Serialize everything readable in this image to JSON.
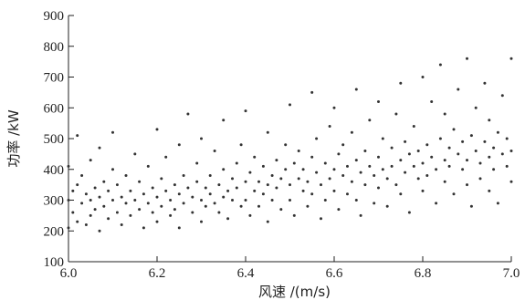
{
  "chart_data": {
    "type": "scatter",
    "title": "",
    "xlabel": "风速 /(m/s)",
    "ylabel": "功率 /kW",
    "xlim": [
      6.0,
      7.0
    ],
    "ylim": [
      100,
      900
    ],
    "grid": false,
    "x_ticks": [
      "6.0",
      "6.2",
      "6.4",
      "6.6",
      "6.8",
      "7.0"
    ],
    "y_ticks": [
      "100",
      "200",
      "300",
      "400",
      "500",
      "600",
      "700",
      "800",
      "900"
    ],
    "colors": {
      "point": "#333333",
      "axis": "#222222"
    },
    "series": [
      {
        "name": "",
        "points": [
          [
            6.0,
            300
          ],
          [
            6.0,
            410
          ],
          [
            6.0,
            210
          ],
          [
            6.01,
            330
          ],
          [
            6.01,
            260
          ],
          [
            6.02,
            350
          ],
          [
            6.02,
            510
          ],
          [
            6.02,
            230
          ],
          [
            6.03,
            290
          ],
          [
            6.03,
            380
          ],
          [
            6.04,
            320
          ],
          [
            6.04,
            220
          ],
          [
            6.05,
            300
          ],
          [
            6.05,
            430
          ],
          [
            6.05,
            250
          ],
          [
            6.06,
            340
          ],
          [
            6.06,
            270
          ],
          [
            6.07,
            310
          ],
          [
            6.07,
            470
          ],
          [
            6.07,
            200
          ],
          [
            6.08,
            360
          ],
          [
            6.08,
            280
          ],
          [
            6.09,
            330
          ],
          [
            6.09,
            240
          ],
          [
            6.1,
            300
          ],
          [
            6.1,
            400
          ],
          [
            6.1,
            520
          ],
          [
            6.11,
            260
          ],
          [
            6.11,
            350
          ],
          [
            6.12,
            310
          ],
          [
            6.12,
            220
          ],
          [
            6.13,
            290
          ],
          [
            6.13,
            380
          ],
          [
            6.14,
            330
          ],
          [
            6.14,
            250
          ],
          [
            6.15,
            300
          ],
          [
            6.15,
            450
          ],
          [
            6.16,
            360
          ],
          [
            6.16,
            270
          ],
          [
            6.17,
            320
          ],
          [
            6.17,
            210
          ],
          [
            6.18,
            290
          ],
          [
            6.18,
            410
          ],
          [
            6.19,
            340
          ],
          [
            6.19,
            260
          ],
          [
            6.2,
            310
          ],
          [
            6.2,
            530
          ],
          [
            6.2,
            230
          ],
          [
            6.21,
            370
          ],
          [
            6.21,
            280
          ],
          [
            6.22,
            330
          ],
          [
            6.22,
            440
          ],
          [
            6.23,
            300
          ],
          [
            6.23,
            250
          ],
          [
            6.24,
            350
          ],
          [
            6.24,
            270
          ],
          [
            6.25,
            320
          ],
          [
            6.25,
            480
          ],
          [
            6.25,
            210
          ],
          [
            6.26,
            380
          ],
          [
            6.26,
            290
          ],
          [
            6.27,
            340
          ],
          [
            6.27,
            580
          ],
          [
            6.28,
            310
          ],
          [
            6.28,
            260
          ],
          [
            6.29,
            360
          ],
          [
            6.29,
            420
          ],
          [
            6.3,
            300
          ],
          [
            6.3,
            230
          ],
          [
            6.3,
            500
          ],
          [
            6.31,
            340
          ],
          [
            6.31,
            280
          ],
          [
            6.32,
            380
          ],
          [
            6.32,
            320
          ],
          [
            6.33,
            290
          ],
          [
            6.33,
            460
          ],
          [
            6.34,
            350
          ],
          [
            6.34,
            260
          ],
          [
            6.35,
            400
          ],
          [
            6.35,
            310
          ],
          [
            6.35,
            560
          ],
          [
            6.36,
            330
          ],
          [
            6.36,
            240
          ],
          [
            6.37,
            370
          ],
          [
            6.37,
            300
          ],
          [
            6.38,
            420
          ],
          [
            6.38,
            340
          ],
          [
            6.39,
            280
          ],
          [
            6.39,
            480
          ],
          [
            6.4,
            360
          ],
          [
            6.4,
            300
          ],
          [
            6.4,
            590
          ],
          [
            6.41,
            390
          ],
          [
            6.41,
            250
          ],
          [
            6.42,
            330
          ],
          [
            6.42,
            440
          ],
          [
            6.43,
            360
          ],
          [
            6.43,
            280
          ],
          [
            6.44,
            410
          ],
          [
            6.44,
            320
          ],
          [
            6.45,
            350
          ],
          [
            6.45,
            520
          ],
          [
            6.45,
            230
          ],
          [
            6.46,
            380
          ],
          [
            6.46,
            300
          ],
          [
            6.47,
            430
          ],
          [
            6.47,
            340
          ],
          [
            6.48,
            370
          ],
          [
            6.48,
            270
          ],
          [
            6.49,
            400
          ],
          [
            6.49,
            480
          ],
          [
            6.5,
            350
          ],
          [
            6.5,
            300
          ],
          [
            6.5,
            610
          ],
          [
            6.51,
            420
          ],
          [
            6.51,
            250
          ],
          [
            6.52,
            370
          ],
          [
            6.52,
            460
          ],
          [
            6.53,
            330
          ],
          [
            6.53,
            400
          ],
          [
            6.54,
            360
          ],
          [
            6.54,
            280
          ],
          [
            6.55,
            440
          ],
          [
            6.55,
            320
          ],
          [
            6.55,
            650
          ],
          [
            6.56,
            390
          ],
          [
            6.56,
            500
          ],
          [
            6.57,
            350
          ],
          [
            6.57,
            240
          ],
          [
            6.58,
            420
          ],
          [
            6.58,
            300
          ],
          [
            6.59,
            370
          ],
          [
            6.59,
            540
          ],
          [
            6.6,
            400
          ],
          [
            6.6,
            330
          ],
          [
            6.6,
            600
          ],
          [
            6.61,
            450
          ],
          [
            6.61,
            270
          ],
          [
            6.62,
            380
          ],
          [
            6.62,
            480
          ],
          [
            6.63,
            410
          ],
          [
            6.63,
            320
          ],
          [
            6.64,
            360
          ],
          [
            6.64,
            520
          ],
          [
            6.65,
            430
          ],
          [
            6.65,
            300
          ],
          [
            6.65,
            660
          ],
          [
            6.66,
            390
          ],
          [
            6.66,
            250
          ],
          [
            6.67,
            460
          ],
          [
            6.67,
            350
          ],
          [
            6.68,
            410
          ],
          [
            6.68,
            560
          ],
          [
            6.69,
            380
          ],
          [
            6.69,
            290
          ],
          [
            6.7,
            440
          ],
          [
            6.7,
            340
          ],
          [
            6.7,
            620
          ],
          [
            6.71,
            400
          ],
          [
            6.71,
            500
          ],
          [
            6.72,
            370
          ],
          [
            6.72,
            280
          ],
          [
            6.73,
            470
          ],
          [
            6.73,
            410
          ],
          [
            6.74,
            350
          ],
          [
            6.74,
            580
          ],
          [
            6.75,
            430
          ],
          [
            6.75,
            320
          ],
          [
            6.75,
            680
          ],
          [
            6.76,
            390
          ],
          [
            6.76,
            490
          ],
          [
            6.77,
            450
          ],
          [
            6.77,
            260
          ],
          [
            6.78,
            410
          ],
          [
            6.78,
            540
          ],
          [
            6.79,
            370
          ],
          [
            6.79,
            460
          ],
          [
            6.8,
            420
          ],
          [
            6.8,
            330
          ],
          [
            6.8,
            700
          ],
          [
            6.81,
            480
          ],
          [
            6.81,
            380
          ],
          [
            6.82,
            440
          ],
          [
            6.82,
            620
          ],
          [
            6.83,
            400
          ],
          [
            6.83,
            290
          ],
          [
            6.84,
            500
          ],
          [
            6.84,
            740
          ],
          [
            6.85,
            430
          ],
          [
            6.85,
            360
          ],
          [
            6.85,
            580
          ],
          [
            6.86,
            470
          ],
          [
            6.86,
            410
          ],
          [
            6.87,
            530
          ],
          [
            6.87,
            320
          ],
          [
            6.88,
            450
          ],
          [
            6.88,
            660
          ],
          [
            6.89,
            400
          ],
          [
            6.89,
            490
          ],
          [
            6.9,
            430
          ],
          [
            6.9,
            350
          ],
          [
            6.9,
            760
          ],
          [
            6.91,
            510
          ],
          [
            6.91,
            280
          ],
          [
            6.92,
            460
          ],
          [
            6.92,
            600
          ],
          [
            6.93,
            420
          ],
          [
            6.93,
            370
          ],
          [
            6.94,
            490
          ],
          [
            6.94,
            680
          ],
          [
            6.95,
            440
          ],
          [
            6.95,
            330
          ],
          [
            6.95,
            560
          ],
          [
            6.96,
            470
          ],
          [
            6.96,
            400
          ],
          [
            6.97,
            520
          ],
          [
            6.97,
            290
          ],
          [
            6.98,
            450
          ],
          [
            6.98,
            640
          ],
          [
            6.99,
            410
          ],
          [
            6.99,
            500
          ],
          [
            7.0,
            460
          ],
          [
            7.0,
            360
          ],
          [
            7.0,
            760
          ]
        ]
      }
    ]
  }
}
